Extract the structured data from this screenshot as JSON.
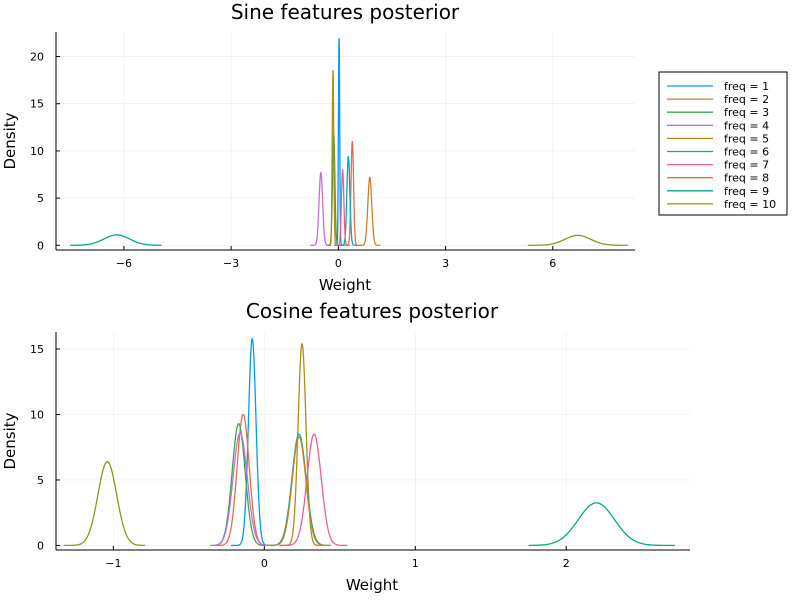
{
  "palette": [
    "#009AFA",
    "#E36F47",
    "#3EA44E",
    "#C371D2",
    "#AC8E18",
    "#00AAAE",
    "#ED5E93",
    "#C68225",
    "#00A98D",
    "#8E971D"
  ],
  "legend": {
    "entries": [
      "freq = 1",
      "freq = 2",
      "freq = 3",
      "freq = 4",
      "freq = 5",
      "freq = 6",
      "freq = 7",
      "freq = 8",
      "freq = 9",
      "freq = 10"
    ],
    "placement": "outer-right"
  },
  "chart_data": [
    {
      "type": "line",
      "title": "Sine features posterior",
      "xlabel": "Weight",
      "ylabel": "Density",
      "xlim": [
        -7.9,
        8.3
      ],
      "ylim": [
        -0.5,
        22.6
      ],
      "xticks": [
        -6,
        -3,
        0,
        3,
        6
      ],
      "xtick_labels": [
        "−6",
        "−3",
        "0",
        "3",
        "6"
      ],
      "yticks": [
        0,
        5,
        10,
        15,
        20
      ],
      "ytick_labels": [
        "0",
        "5",
        "10",
        "15",
        "20"
      ],
      "grid": true,
      "series": [
        {
          "name": "freq = 1",
          "mu": 0.02,
          "sigma": 0.018,
          "peak": 21.9,
          "range": [
            -0.12,
            0.16
          ]
        },
        {
          "name": "freq = 2",
          "mu": 0.39,
          "sigma": 0.036,
          "peak": 11.0,
          "range": [
            0.15,
            0.62
          ]
        },
        {
          "name": "freq = 3",
          "mu": -0.13,
          "sigma": 0.033,
          "peak": 11.8,
          "range": [
            -0.33,
            0.06
          ]
        },
        {
          "name": "freq = 4",
          "mu": -0.49,
          "sigma": 0.05,
          "peak": 7.7,
          "range": [
            -0.78,
            -0.2
          ]
        },
        {
          "name": "freq = 5",
          "mu": -0.15,
          "sigma": 0.022,
          "peak": 18.5,
          "range": [
            -0.3,
            0.0
          ]
        },
        {
          "name": "freq = 6",
          "mu": 0.28,
          "sigma": 0.042,
          "peak": 9.4,
          "range": [
            0.05,
            0.52
          ]
        },
        {
          "name": "freq = 7",
          "mu": 0.12,
          "sigma": 0.034,
          "peak": 8.0,
          "range": [
            -0.08,
            0.32
          ]
        },
        {
          "name": "freq = 8",
          "mu": 0.88,
          "sigma": 0.055,
          "peak": 7.2,
          "range": [
            0.58,
            1.18
          ]
        },
        {
          "name": "freq = 9",
          "mu": -6.2,
          "sigma": 0.36,
          "peak": 1.1,
          "range": [
            -7.5,
            -4.95
          ]
        },
        {
          "name": "freq = 10",
          "mu": 6.7,
          "sigma": 0.36,
          "peak": 1.05,
          "range": [
            5.3,
            8.1
          ]
        }
      ]
    },
    {
      "type": "line",
      "title": "Cosine features posterior",
      "xlabel": "Weight",
      "ylabel": "Density",
      "xlim": [
        -1.38,
        2.82
      ],
      "ylim": [
        -0.35,
        16.3
      ],
      "xticks": [
        -1,
        0,
        1,
        2
      ],
      "xtick_labels": [
        "−1",
        "0",
        "1",
        "2"
      ],
      "yticks": [
        0,
        5,
        10,
        15
      ],
      "ytick_labels": [
        "0",
        "5",
        "10",
        "15"
      ],
      "grid": true,
      "series": [
        {
          "name": "freq = 1",
          "mu": -0.08,
          "sigma": 0.025,
          "peak": 15.8,
          "range": [
            -0.22,
            0.06
          ]
        },
        {
          "name": "freq = 2",
          "mu": -0.14,
          "sigma": 0.04,
          "peak": 10.0,
          "range": [
            -0.33,
            0.06
          ]
        },
        {
          "name": "freq = 3",
          "mu": -0.17,
          "sigma": 0.043,
          "peak": 9.3,
          "range": [
            -0.35,
            0.02
          ]
        },
        {
          "name": "freq = 4",
          "mu": -0.16,
          "sigma": 0.047,
          "peak": 8.6,
          "range": [
            -0.36,
            0.04
          ]
        },
        {
          "name": "freq = 5",
          "mu": 0.25,
          "sigma": 0.026,
          "peak": 15.4,
          "range": [
            0.1,
            0.4
          ]
        },
        {
          "name": "freq = 6",
          "mu": 0.23,
          "sigma": 0.047,
          "peak": 8.5,
          "range": [
            0.02,
            0.44
          ]
        },
        {
          "name": "freq = 7",
          "mu": 0.33,
          "sigma": 0.047,
          "peak": 8.5,
          "range": [
            0.1,
            0.55
          ]
        },
        {
          "name": "freq = 8",
          "mu": 0.23,
          "sigma": 0.045,
          "peak": 8.3,
          "range": [
            0.02,
            0.44
          ]
        },
        {
          "name": "freq = 9",
          "mu": 2.2,
          "sigma": 0.12,
          "peak": 3.25,
          "range": [
            1.75,
            2.72
          ]
        },
        {
          "name": "freq = 10",
          "mu": -1.04,
          "sigma": 0.062,
          "peak": 6.4,
          "range": [
            -1.33,
            -0.79
          ]
        }
      ]
    }
  ]
}
